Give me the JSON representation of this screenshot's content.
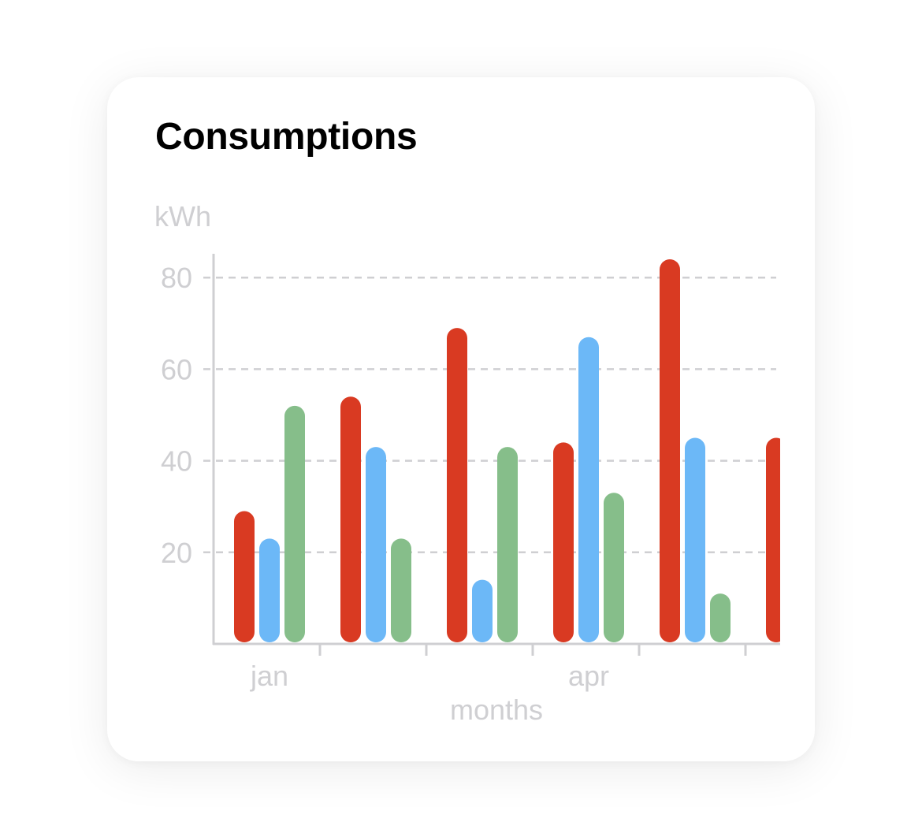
{
  "card": {
    "title": "Consumptions"
  },
  "chart_data": {
    "type": "bar",
    "ylabel": "kWh",
    "xlabel": "months",
    "ylim": [
      0,
      85
    ],
    "yticks": [
      20,
      40,
      60,
      80
    ],
    "grid": "dashed horizontal",
    "categories": [
      "jan",
      "",
      "",
      "apr",
      "",
      ""
    ],
    "series": [
      {
        "values": [
          29,
          54,
          69,
          44,
          84,
          45
        ],
        "color": "#d93a22"
      },
      {
        "values": [
          23,
          43,
          14,
          67,
          45,
          null
        ],
        "color": "#6cb8f7"
      },
      {
        "values": [
          52,
          23,
          43,
          33,
          11,
          null
        ],
        "color": "#86be8a"
      }
    ],
    "colors": {
      "axis": "#cfcfd2",
      "grid": "#cfcfd2",
      "text": "#cfcfd2"
    }
  }
}
